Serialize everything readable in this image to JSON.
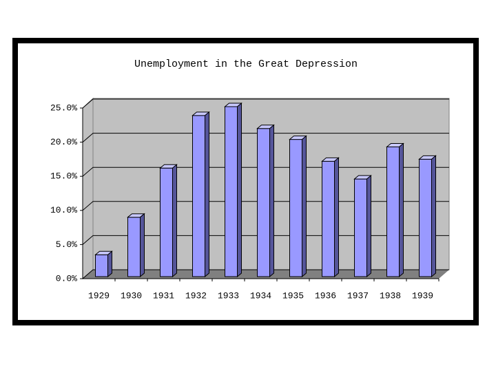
{
  "chart_data": {
    "type": "bar3d",
    "title": "Unemployment in the Great Depression",
    "categories": [
      "1929",
      "1930",
      "1931",
      "1932",
      "1933",
      "1934",
      "1935",
      "1936",
      "1937",
      "1938",
      "1939"
    ],
    "values": [
      3.2,
      8.7,
      15.9,
      23.6,
      24.9,
      21.7,
      20.1,
      16.9,
      14.3,
      19.0,
      17.2
    ],
    "color": "#9999ff",
    "ylim": [
      0,
      25
    ],
    "yticks": [
      {
        "value": 0,
        "label": "0.0%"
      },
      {
        "value": 5,
        "label": "5.0%"
      },
      {
        "value": 10,
        "label": "10.0%"
      },
      {
        "value": 15,
        "label": "15.0%"
      },
      {
        "value": 20,
        "label": "20.0%"
      },
      {
        "value": 25,
        "label": "25.0%"
      }
    ],
    "grid": true
  }
}
